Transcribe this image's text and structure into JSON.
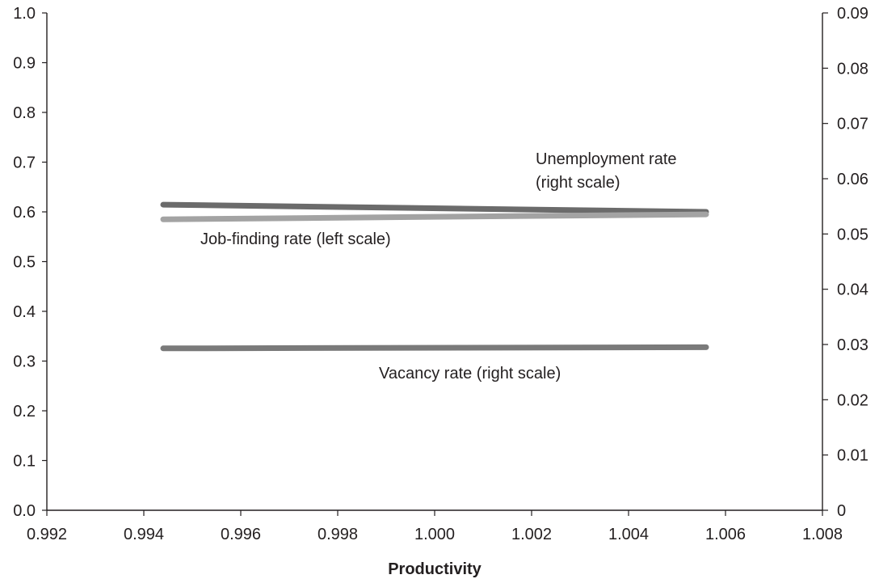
{
  "chart_data": {
    "type": "line",
    "title": "",
    "xlabel": "Productivity",
    "ylabel": "",
    "ylabel_right": "",
    "xlim": [
      0.992,
      1.008
    ],
    "ylim_left": [
      0.0,
      1.0
    ],
    "ylim_right": [
      0.0,
      0.09
    ],
    "grid": false,
    "legend": "none",
    "x_ticks": [
      "0.992",
      "0.994",
      "0.996",
      "0.998",
      "1.000",
      "1.002",
      "1.004",
      "1.006",
      "1.008"
    ],
    "y_left_ticks": [
      "0.0",
      "0.1",
      "0.2",
      "0.3",
      "0.4",
      "0.5",
      "0.6",
      "0.7",
      "0.8",
      "0.9",
      "1.0"
    ],
    "y_right_ticks": [
      "0",
      "0.01",
      "0.02",
      "0.03",
      "0.04",
      "0.05",
      "0.06",
      "0.07",
      "0.08",
      "0.09"
    ],
    "series": [
      {
        "key": "unemployment",
        "axis": "right",
        "color": "#6b6b6b",
        "x": [
          0.9944,
          1.0056
        ],
        "y": [
          0.0553,
          0.054
        ]
      },
      {
        "key": "jobfinding",
        "axis": "left",
        "color": "#a3a3a3",
        "x": [
          0.9944,
          1.0056
        ],
        "y": [
          0.585,
          0.595
        ]
      },
      {
        "key": "vacancy",
        "axis": "right",
        "color": "#7a7a7a",
        "x": [
          0.9944,
          1.0056
        ],
        "y": [
          0.0293,
          0.0295
        ]
      }
    ],
    "annotations": {
      "unemployment_line1": "Unemployment rate",
      "unemployment_line2": "(right scale)",
      "jobfinding": "Job-finding rate (left scale)",
      "vacancy": "Vacancy rate (right scale)"
    }
  }
}
